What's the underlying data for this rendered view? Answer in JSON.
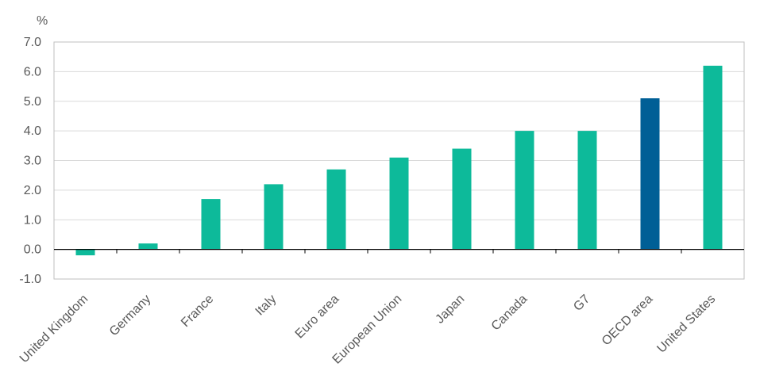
{
  "chart_data": {
    "type": "bar",
    "ylabel": "%",
    "ylim": [
      -1,
      7
    ],
    "yticks": [
      -1,
      0,
      1,
      2,
      3,
      4,
      5,
      6,
      7
    ],
    "grid": true,
    "categories": [
      "United Kingdom",
      "Germany",
      "France",
      "Italy",
      "Euro area",
      "European Union",
      "Japan",
      "Canada",
      "G7",
      "OECD area",
      "United States"
    ],
    "values": [
      -0.2,
      0.2,
      1.7,
      2.2,
      2.7,
      3.1,
      3.4,
      4.0,
      4.0,
      5.1,
      6.2
    ],
    "colors": {
      "default": "#0dba9a",
      "highlight": "#005f96"
    },
    "highlight_category": "OECD area"
  }
}
